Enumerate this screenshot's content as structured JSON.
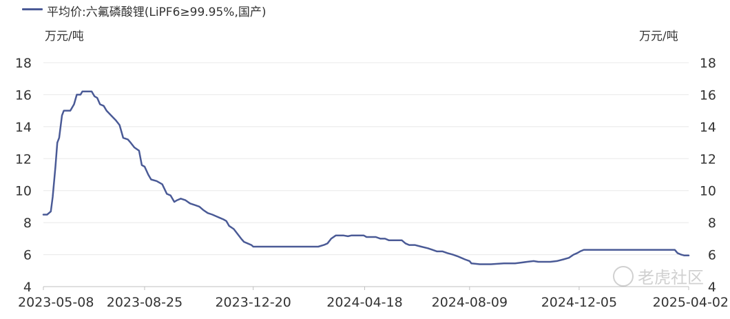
{
  "legend": {
    "label": "平均价:六氟磷酸锂(LiPF6≥99.95%,国产)",
    "color": "#4a5a96"
  },
  "axis": {
    "unit_left": "万元/吨",
    "unit_right": "万元/吨"
  },
  "watermark": {
    "text": "老虎社区"
  },
  "chart_data": {
    "type": "line",
    "series": [
      {
        "name": "平均价:六氟磷酸锂(LiPF6≥99.95%,国产)",
        "points": [
          [
            "2023-05-08",
            8.5
          ],
          [
            "2023-05-12",
            8.5
          ],
          [
            "2023-05-16",
            8.7
          ],
          [
            "2023-05-18",
            9.6
          ],
          [
            "2023-05-21",
            11.5
          ],
          [
            "2023-05-23",
            13.0
          ],
          [
            "2023-05-25",
            13.3
          ],
          [
            "2023-05-28",
            14.7
          ],
          [
            "2023-05-30",
            15.0
          ],
          [
            "2023-06-06",
            15.0
          ],
          [
            "2023-06-10",
            15.4
          ],
          [
            "2023-06-13",
            16.0
          ],
          [
            "2023-06-17",
            16.0
          ],
          [
            "2023-06-19",
            16.2
          ],
          [
            "2023-06-29",
            16.2
          ],
          [
            "2023-07-02",
            15.9
          ],
          [
            "2023-07-05",
            15.8
          ],
          [
            "2023-07-08",
            15.4
          ],
          [
            "2023-07-12",
            15.3
          ],
          [
            "2023-07-15",
            15.0
          ],
          [
            "2023-07-20",
            14.7
          ],
          [
            "2023-07-25",
            14.4
          ],
          [
            "2023-07-29",
            14.1
          ],
          [
            "2023-08-02",
            13.3
          ],
          [
            "2023-08-07",
            13.2
          ],
          [
            "2023-08-10",
            13.0
          ],
          [
            "2023-08-14",
            12.7
          ],
          [
            "2023-08-19",
            12.5
          ],
          [
            "2023-08-22",
            11.6
          ],
          [
            "2023-08-25",
            11.5
          ],
          [
            "2023-08-29",
            11.0
          ],
          [
            "2023-09-01",
            10.7
          ],
          [
            "2023-09-07",
            10.6
          ],
          [
            "2023-09-13",
            10.4
          ],
          [
            "2023-09-18",
            9.8
          ],
          [
            "2023-09-22",
            9.7
          ],
          [
            "2023-09-26",
            9.3
          ],
          [
            "2023-09-29",
            9.4
          ],
          [
            "2023-10-03",
            9.5
          ],
          [
            "2023-10-08",
            9.4
          ],
          [
            "2023-10-13",
            9.2
          ],
          [
            "2023-10-18",
            9.1
          ],
          [
            "2023-10-23",
            9.0
          ],
          [
            "2023-10-27",
            8.8
          ],
          [
            "2023-11-01",
            8.6
          ],
          [
            "2023-11-06",
            8.5
          ],
          [
            "2023-11-10",
            8.4
          ],
          [
            "2023-11-14",
            8.3
          ],
          [
            "2023-11-18",
            8.2
          ],
          [
            "2023-11-21",
            8.1
          ],
          [
            "2023-11-24",
            7.8
          ],
          [
            "2023-11-29",
            7.6
          ],
          [
            "2023-12-03",
            7.3
          ],
          [
            "2023-12-07",
            7.0
          ],
          [
            "2023-12-10",
            6.8
          ],
          [
            "2023-12-14",
            6.7
          ],
          [
            "2023-12-18",
            6.6
          ],
          [
            "2023-12-20",
            6.5
          ],
          [
            "2024-02-28",
            6.5
          ],
          [
            "2024-03-05",
            6.6
          ],
          [
            "2024-03-09",
            6.7
          ],
          [
            "2024-03-13",
            7.0
          ],
          [
            "2024-03-18",
            7.2
          ],
          [
            "2024-03-26",
            7.2
          ],
          [
            "2024-03-31",
            7.15
          ],
          [
            "2024-04-04",
            7.2
          ],
          [
            "2024-04-17",
            7.2
          ],
          [
            "2024-04-20",
            7.1
          ],
          [
            "2024-04-30",
            7.1
          ],
          [
            "2024-05-05",
            7.0
          ],
          [
            "2024-05-10",
            7.0
          ],
          [
            "2024-05-14",
            6.9
          ],
          [
            "2024-05-28",
            6.9
          ],
          [
            "2024-06-01",
            6.7
          ],
          [
            "2024-06-05",
            6.6
          ],
          [
            "2024-06-11",
            6.6
          ],
          [
            "2024-06-18",
            6.5
          ],
          [
            "2024-06-25",
            6.4
          ],
          [
            "2024-06-30",
            6.3
          ],
          [
            "2024-07-05",
            6.2
          ],
          [
            "2024-07-11",
            6.2
          ],
          [
            "2024-07-16",
            6.1
          ],
          [
            "2024-07-22",
            6.0
          ],
          [
            "2024-07-27",
            5.9
          ],
          [
            "2024-07-31",
            5.8
          ],
          [
            "2024-08-04",
            5.7
          ],
          [
            "2024-08-09",
            5.6
          ],
          [
            "2024-08-11",
            5.45
          ],
          [
            "2024-08-20",
            5.4
          ],
          [
            "2024-09-01",
            5.4
          ],
          [
            "2024-09-15",
            5.45
          ],
          [
            "2024-09-27",
            5.45
          ],
          [
            "2024-10-03",
            5.5
          ],
          [
            "2024-10-10",
            5.55
          ],
          [
            "2024-10-17",
            5.6
          ],
          [
            "2024-10-22",
            5.55
          ],
          [
            "2024-11-04",
            5.55
          ],
          [
            "2024-11-11",
            5.6
          ],
          [
            "2024-11-18",
            5.7
          ],
          [
            "2024-11-24",
            5.8
          ],
          [
            "2024-11-29",
            6.0
          ],
          [
            "2024-12-03",
            6.1
          ],
          [
            "2024-12-06",
            6.2
          ],
          [
            "2024-12-10",
            6.3
          ],
          [
            "2025-03-18",
            6.3
          ],
          [
            "2025-03-21",
            6.1
          ],
          [
            "2025-03-25",
            6.0
          ],
          [
            "2025-03-28",
            5.95
          ],
          [
            "2025-04-02",
            5.95
          ]
        ]
      }
    ],
    "x_ticks": [
      "2023-05-08",
      "2023-08-25",
      "2023-12-20",
      "2024-04-18",
      "2024-08-09",
      "2024-12-05",
      "2025-04-02"
    ],
    "y_ticks": [
      4,
      6,
      8,
      10,
      12,
      14,
      16,
      18
    ],
    "ylim": [
      4,
      18
    ],
    "xlim": [
      "2023-05-08",
      "2025-04-02"
    ],
    "ylabel_left": "万元/吨",
    "ylabel_right": "万元/吨",
    "grid": "horizontal",
    "legend_position": "top-left"
  }
}
